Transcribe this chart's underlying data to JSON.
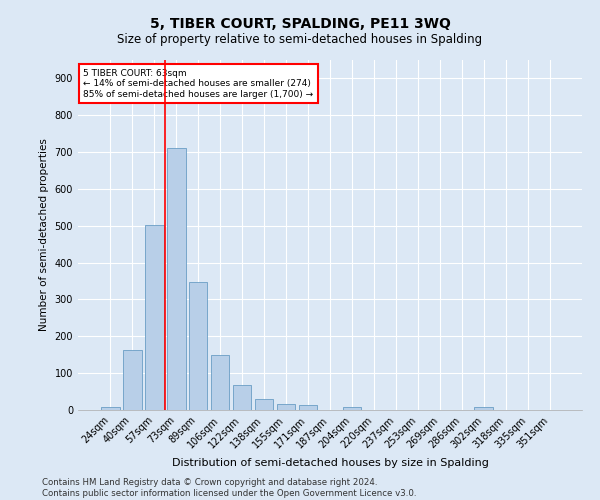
{
  "title": "5, TIBER COURT, SPALDING, PE11 3WQ",
  "subtitle": "Size of property relative to semi-detached houses in Spalding",
  "xlabel": "Distribution of semi-detached houses by size in Spalding",
  "ylabel": "Number of semi-detached properties",
  "categories": [
    "24sqm",
    "40sqm",
    "57sqm",
    "73sqm",
    "89sqm",
    "106sqm",
    "122sqm",
    "138sqm",
    "155sqm",
    "171sqm",
    "187sqm",
    "204sqm",
    "220sqm",
    "237sqm",
    "253sqm",
    "269sqm",
    "286sqm",
    "302sqm",
    "318sqm",
    "335sqm",
    "351sqm"
  ],
  "values": [
    8,
    162,
    503,
    712,
    348,
    148,
    68,
    30,
    15,
    13,
    0,
    8,
    0,
    0,
    0,
    0,
    0,
    8,
    0,
    0,
    0
  ],
  "bar_color": "#b8cfe8",
  "bar_edge_color": "#6a9ec5",
  "vline_x": 2.5,
  "vline_color": "red",
  "annotation_text": "5 TIBER COURT: 63sqm\n← 14% of semi-detached houses are smaller (274)\n85% of semi-detached houses are larger (1,700) →",
  "annotation_box_color": "white",
  "annotation_box_edge_color": "red",
  "ylim": [
    0,
    950
  ],
  "yticks": [
    0,
    100,
    200,
    300,
    400,
    500,
    600,
    700,
    800,
    900
  ],
  "footer_line1": "Contains HM Land Registry data © Crown copyright and database right 2024.",
  "footer_line2": "Contains public sector information licensed under the Open Government Licence v3.0.",
  "background_color": "#dce8f5",
  "plot_background_color": "#dce8f5",
  "title_fontsize": 10,
  "subtitle_fontsize": 8.5,
  "xlabel_fontsize": 8,
  "ylabel_fontsize": 7.5,
  "footer_fontsize": 6.2,
  "tick_fontsize": 7
}
